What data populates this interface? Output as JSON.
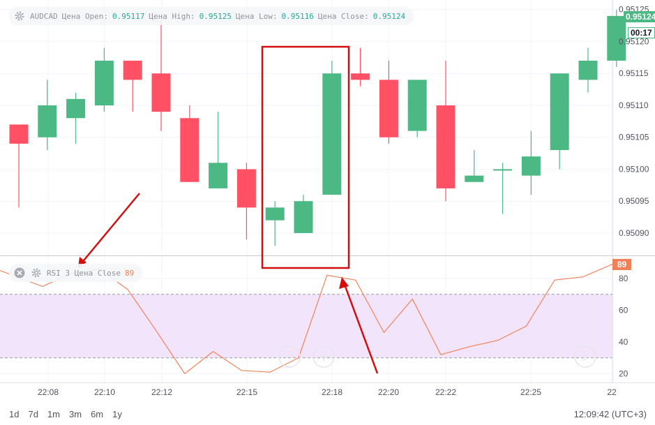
{
  "legend_main": {
    "symbol": "AUDCAD",
    "open_label": "Цена Open:",
    "open_value": "0.95117",
    "high_label": "Цена High:",
    "high_value": "0.95125",
    "low_label": "Цена Low:",
    "low_value": "0.95116",
    "close_label": "Цена Close:",
    "close_value": "0.95124"
  },
  "legend_rsi": {
    "label": "RSI 3 Цена Close",
    "value": "89"
  },
  "price_badge": "0.95124",
  "countdown_badge": "00:17",
  "rsi_badge": "89",
  "periods": [
    "1d",
    "7d",
    "1m",
    "3m",
    "6m",
    "1y"
  ],
  "clock": "12:09:42 (UTC+3)",
  "colors": {
    "up": "#4cb883",
    "down": "#ff5163",
    "rsi_line": "#f0825a",
    "rsi_band": "#f2e4fb",
    "annotation": "#d10f0f",
    "price_badge": "#4cb883",
    "rsi_badge": "#f0825a"
  },
  "chart_data": [
    {
      "type": "candlestick",
      "title": "AUDCAD",
      "x_tick_labels": [
        "22:08",
        "22:10",
        "22:12",
        "22:15",
        "22:18",
        "22:20",
        "22:22",
        "22:25",
        "22"
      ],
      "y_tick_labels": [
        "0.95125",
        "0.95120",
        "0.95115",
        "0.95110",
        "0.95105",
        "0.95100",
        "0.95095",
        "0.95090"
      ],
      "ylim": [
        0.950865,
        0.951265
      ],
      "grid": true,
      "candles": [
        {
          "o": 0.95107,
          "h": 0.95107,
          "l": 0.95094,
          "c": 0.95104
        },
        {
          "o": 0.95105,
          "h": 0.95114,
          "l": 0.95103,
          "c": 0.9511
        },
        {
          "o": 0.95108,
          "h": 0.95112,
          "l": 0.95104,
          "c": 0.95111
        },
        {
          "o": 0.9511,
          "h": 0.95119,
          "l": 0.95109,
          "c": 0.95117
        },
        {
          "o": 0.95117,
          "h": 0.95117,
          "l": 0.95109,
          "c": 0.95114
        },
        {
          "o": 0.95115,
          "h": 0.95124,
          "l": 0.95106,
          "c": 0.95109
        },
        {
          "o": 0.95108,
          "h": 0.9511,
          "l": 0.95098,
          "c": 0.95098
        },
        {
          "o": 0.95097,
          "h": 0.95109,
          "l": 0.95097,
          "c": 0.95101
        },
        {
          "o": 0.951,
          "h": 0.95101,
          "l": 0.95089,
          "c": 0.95094
        },
        {
          "o": 0.95092,
          "h": 0.95095,
          "l": 0.95088,
          "c": 0.95094
        },
        {
          "o": 0.9509,
          "h": 0.95096,
          "l": 0.9509,
          "c": 0.95095
        },
        {
          "o": 0.95096,
          "h": 0.95117,
          "l": 0.95096,
          "c": 0.95115
        },
        {
          "o": 0.95115,
          "h": 0.95119,
          "l": 0.95113,
          "c": 0.95114
        },
        {
          "o": 0.95114,
          "h": 0.95117,
          "l": 0.95104,
          "c": 0.95105
        },
        {
          "o": 0.95106,
          "h": 0.95114,
          "l": 0.95105,
          "c": 0.95114
        },
        {
          "o": 0.9511,
          "h": 0.95117,
          "l": 0.95095,
          "c": 0.95097
        },
        {
          "o": 0.95098,
          "h": 0.95103,
          "l": 0.95098,
          "c": 0.95099
        },
        {
          "o": 0.951,
          "h": 0.95101,
          "l": 0.95093,
          "c": 0.951
        },
        {
          "o": 0.95099,
          "h": 0.95106,
          "l": 0.95096,
          "c": 0.95102
        },
        {
          "o": 0.95103,
          "h": 0.95115,
          "l": 0.951,
          "c": 0.95115
        },
        {
          "o": 0.95114,
          "h": 0.95119,
          "l": 0.95112,
          "c": 0.95117
        },
        {
          "o": 0.95117,
          "h": 0.95125,
          "l": 0.95116,
          "c": 0.95124
        }
      ]
    },
    {
      "type": "line",
      "title": "RSI 3 Цена Close",
      "y_tick_labels": [
        "80",
        "60",
        "40",
        "20"
      ],
      "ylim": [
        15,
        89
      ],
      "band": [
        30,
        70
      ],
      "series": [
        {
          "name": "RSI 3 Цена Close",
          "values": [
            85,
            75,
            83,
            86,
            73,
            47,
            20,
            34,
            22,
            21,
            30,
            82,
            79,
            46,
            67,
            32,
            37,
            41,
            50,
            79,
            81,
            89
          ]
        }
      ]
    }
  ]
}
